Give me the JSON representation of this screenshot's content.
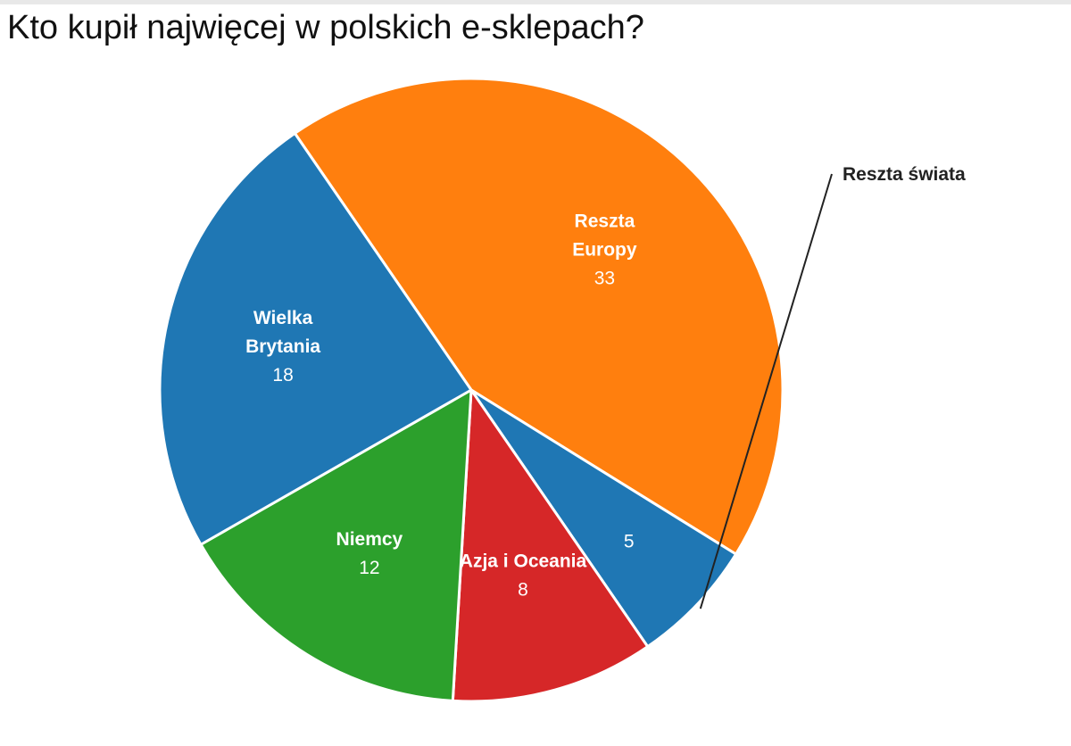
{
  "chart_data": {
    "type": "pie",
    "title": "Kto kupił najwięcej w polskich e-sklepach?",
    "slices": [
      {
        "label": "Reszta Europy",
        "label_lines": [
          "Reszta",
          "Europy"
        ],
        "value": 33,
        "color": "#ff7f0e"
      },
      {
        "label": "Reszta świata",
        "label_lines": [
          "Reszta świata"
        ],
        "value": 5,
        "color": "#1f77b4"
      },
      {
        "label": "Azja i Oceania",
        "label_lines": [
          "Azja i Oceania"
        ],
        "value": 8,
        "color": "#d62728"
      },
      {
        "label": "Niemcy",
        "label_lines": [
          "Niemcy"
        ],
        "value": 12,
        "color": "#2ca02c"
      },
      {
        "label": "Wielka Brytania",
        "label_lines": [
          "Wielka",
          "Brytania"
        ],
        "value": 18,
        "color": "#1f77b4"
      }
    ]
  }
}
